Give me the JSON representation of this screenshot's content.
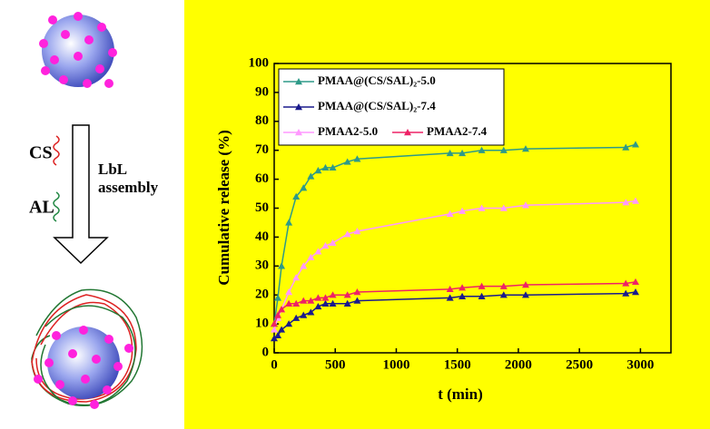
{
  "scheme": {
    "polymers": [
      "CS",
      "AL"
    ],
    "process": [
      "LbL",
      "assembly"
    ]
  },
  "chart_data": {
    "type": "line",
    "xlabel": "t (min)",
    "ylabel": "Cumulative release (%)",
    "x": [
      0,
      30,
      60,
      120,
      180,
      240,
      300,
      360,
      420,
      480,
      600,
      680,
      1440,
      1540,
      1700,
      1880,
      2060,
      2880,
      2960
    ],
    "series": [
      {
        "name": "PMAA@(CS/SAL)₂-5.0",
        "color": "#2e9a88",
        "values": [
          10,
          19,
          30,
          45,
          54,
          57,
          61,
          63,
          64,
          64,
          66,
          67,
          69,
          69,
          70,
          70,
          70.5,
          71,
          72
        ]
      },
      {
        "name": "PMAA@(CS/SAL)₂-7.4",
        "color": "#1a1a8c",
        "values": [
          5,
          6,
          8,
          10,
          12,
          13,
          14,
          16,
          17,
          17,
          17,
          18,
          19,
          19.5,
          19.5,
          20,
          20,
          20.5,
          21
        ]
      },
      {
        "name": "PMAA2-5.0",
        "color": "#ff99ff",
        "values": [
          8,
          12,
          15,
          21,
          26,
          30,
          33,
          35,
          37,
          38,
          41,
          42,
          48,
          49,
          50,
          50,
          51,
          52,
          52.5
        ]
      },
      {
        "name": "PMAA2-7.4",
        "color": "#ee2266",
        "values": [
          10,
          13,
          15,
          17,
          17,
          18,
          18,
          19,
          19,
          20,
          20,
          21,
          22,
          22.5,
          23,
          23,
          23.5,
          24,
          24.5
        ]
      }
    ],
    "xlim": [
      0,
      3250
    ],
    "ylim": [
      0,
      100
    ],
    "xticks": [
      0,
      500,
      1000,
      1500,
      2000,
      2500,
      3000
    ],
    "yticks": [
      0,
      10,
      20,
      30,
      40,
      50,
      60,
      70,
      80,
      90,
      100
    ],
    "background": "#ffff00"
  }
}
